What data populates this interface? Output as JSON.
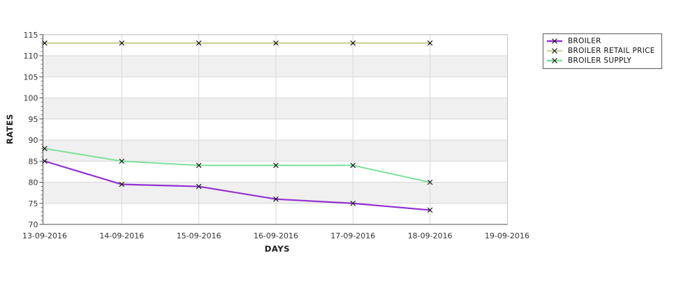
{
  "chart": {
    "background_color": "#ffffff",
    "band_color": "#f0f0f0",
    "gridline_color": "#d8d8d8",
    "axis_line_color": "#4d4d4d",
    "plot_border_color": "#c2c2c2",
    "marker_color": "#0a0a0a",
    "legend_border_color": "#5a5a5a"
  },
  "chart_data": {
    "type": "line",
    "title": "",
    "xlabel": "DAYS",
    "ylabel": "RATES",
    "x_tick_labels": [
      "13-09-2016",
      "14-09-2016",
      "15-09-2016",
      "16-09-2016",
      "17-09-2016",
      "18-09-2016",
      "19-09-2016"
    ],
    "categories": [
      "13-09-2016",
      "14-09-2016",
      "15-09-2016",
      "16-09-2016",
      "17-09-2016",
      "18-09-2016"
    ],
    "series": [
      {
        "name": "BROILER",
        "color": "#9430d0",
        "line_width": 2.2,
        "marker": "x",
        "values": [
          85,
          79.5,
          79,
          76,
          75,
          73.4
        ]
      },
      {
        "name": "BROILER RETAIL PRICE",
        "color": "#d3d7a0",
        "line_width": 2.6,
        "marker": "x",
        "values": [
          113,
          113,
          113,
          113,
          113,
          113
        ]
      },
      {
        "name": "BROILER SUPPLY",
        "color": "#7ee098",
        "line_width": 2.0,
        "marker": "x",
        "values": [
          88,
          85,
          84,
          84,
          84,
          80
        ]
      }
    ],
    "ylim": [
      70,
      115
    ],
    "yticks": [
      70,
      75,
      80,
      85,
      90,
      95,
      100,
      105,
      110,
      115
    ],
    "y_minor_tick_step": 1,
    "grid": true,
    "band_pattern": "alternating-5-unit-rows",
    "legend_position": "top-right",
    "legend_labels": [
      "BROILER",
      "BROILER RETAIL PRICE",
      "BROILER SUPPLY"
    ]
  }
}
